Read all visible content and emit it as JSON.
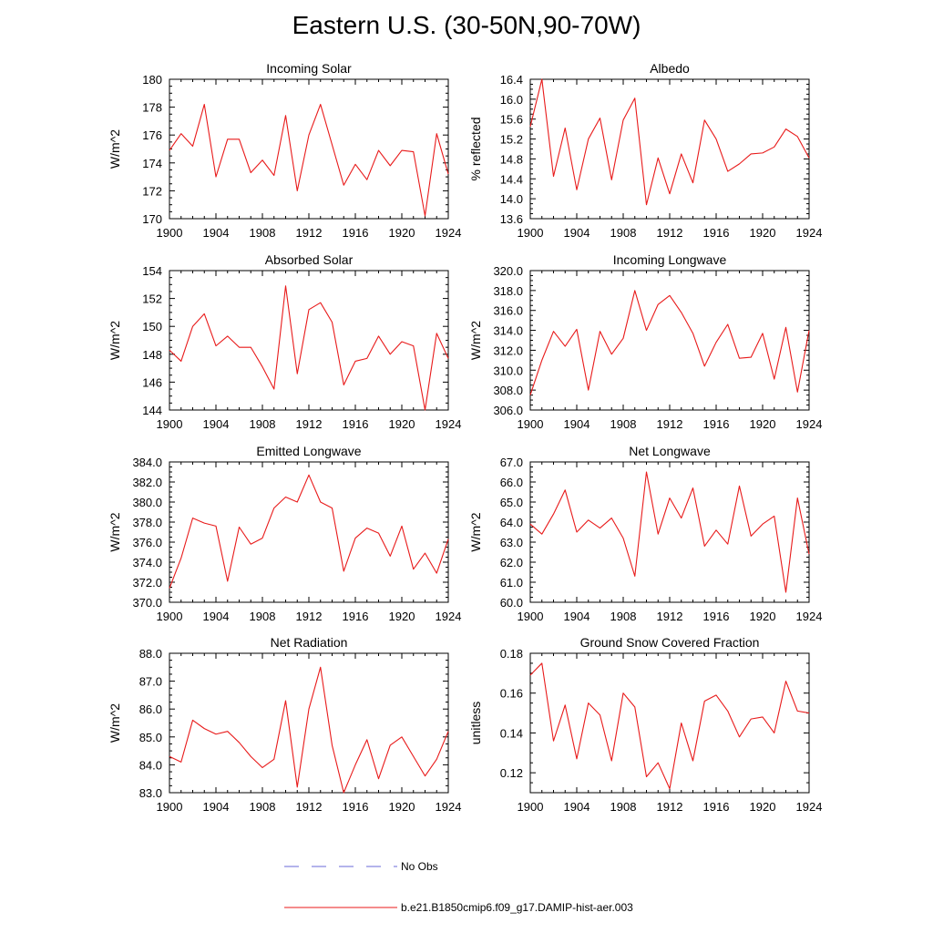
{
  "page": {
    "title": "Eastern U.S. (30-50N,90-70W)"
  },
  "legend": {
    "items": [
      {
        "label": "No Obs",
        "style": "dashed",
        "color": "#6a6ad8"
      },
      {
        "label": "b.e21.B1850cmip6.f09_g17.DAMIP-hist-aer.003",
        "style": "solid",
        "color": "#e81a1a"
      }
    ]
  },
  "colors": {
    "series": "#e81a1a",
    "axis": "#000000"
  },
  "chart_data": [
    {
      "type": "line",
      "title": "Incoming Solar",
      "ylabel": "W/m^2",
      "xlim": [
        1900,
        1924
      ],
      "ylim": [
        170,
        180
      ],
      "xticks": [
        1900,
        1904,
        1908,
        1912,
        1916,
        1920,
        1924
      ],
      "yticks": [
        170,
        172,
        174,
        176,
        178,
        180
      ],
      "ytick_labels": [
        "170",
        "172",
        "174",
        "176",
        "178",
        "180"
      ],
      "x": [
        1900,
        1901,
        1902,
        1903,
        1904,
        1905,
        1906,
        1907,
        1908,
        1909,
        1910,
        1911,
        1912,
        1913,
        1914,
        1915,
        1916,
        1917,
        1918,
        1919,
        1920,
        1921,
        1922,
        1923,
        1924
      ],
      "values": [
        174.9,
        176.1,
        175.2,
        178.2,
        173.0,
        175.7,
        175.7,
        173.3,
        174.2,
        173.1,
        177.4,
        172.0,
        176.0,
        178.2,
        175.3,
        172.4,
        173.9,
        172.8,
        174.9,
        173.8,
        174.9,
        174.8,
        170.2,
        176.1,
        173.2
      ]
    },
    {
      "type": "line",
      "title": "Albedo",
      "ylabel": "% reflected",
      "xlim": [
        1900,
        1924
      ],
      "ylim": [
        13.6,
        16.4
      ],
      "xticks": [
        1900,
        1904,
        1908,
        1912,
        1916,
        1920,
        1924
      ],
      "yticks": [
        13.6,
        14.0,
        14.4,
        14.8,
        15.2,
        15.6,
        16.0,
        16.4
      ],
      "ytick_labels": [
        "13.6",
        "14.0",
        "14.4",
        "14.8",
        "15.2",
        "15.6",
        "16.0",
        "16.4"
      ],
      "x": [
        1900,
        1901,
        1902,
        1903,
        1904,
        1905,
        1906,
        1907,
        1908,
        1909,
        1910,
        1911,
        1912,
        1913,
        1914,
        1915,
        1916,
        1917,
        1918,
        1919,
        1920,
        1921,
        1922,
        1923,
        1924
      ],
      "values": [
        15.45,
        16.4,
        14.45,
        15.42,
        14.18,
        15.2,
        15.62,
        14.38,
        15.58,
        16.02,
        13.88,
        14.82,
        14.1,
        14.9,
        14.32,
        15.58,
        15.2,
        14.55,
        14.7,
        14.9,
        14.92,
        15.04,
        15.4,
        15.25,
        14.82
      ]
    },
    {
      "type": "line",
      "title": "Absorbed Solar",
      "ylabel": "W/m^2",
      "xlim": [
        1900,
        1924
      ],
      "ylim": [
        144,
        154
      ],
      "xticks": [
        1900,
        1904,
        1908,
        1912,
        1916,
        1920,
        1924
      ],
      "yticks": [
        144,
        146,
        148,
        150,
        152,
        154
      ],
      "ytick_labels": [
        "144",
        "146",
        "148",
        "150",
        "152",
        "154"
      ],
      "x": [
        1900,
        1901,
        1902,
        1903,
        1904,
        1905,
        1906,
        1907,
        1908,
        1909,
        1910,
        1911,
        1912,
        1913,
        1914,
        1915,
        1916,
        1917,
        1918,
        1919,
        1920,
        1921,
        1922,
        1923,
        1924
      ],
      "values": [
        148.3,
        147.5,
        150.0,
        150.9,
        148.6,
        149.3,
        148.5,
        148.5,
        147.1,
        145.5,
        152.9,
        146.6,
        151.2,
        151.7,
        150.3,
        145.8,
        147.5,
        147.7,
        149.3,
        148.0,
        148.9,
        148.6,
        144.0,
        149.5,
        147.7
      ]
    },
    {
      "type": "line",
      "title": "Incoming Longwave",
      "ylabel": "W/m^2",
      "xlim": [
        1900,
        1924
      ],
      "ylim": [
        306,
        320
      ],
      "xticks": [
        1900,
        1904,
        1908,
        1912,
        1916,
        1920,
        1924
      ],
      "yticks": [
        306,
        308,
        310,
        312,
        314,
        316,
        318,
        320
      ],
      "ytick_labels": [
        "306.0",
        "308.0",
        "310.0",
        "312.0",
        "314.0",
        "316.0",
        "318.0",
        "320.0"
      ],
      "x": [
        1900,
        1901,
        1902,
        1903,
        1904,
        1905,
        1906,
        1907,
        1908,
        1909,
        1910,
        1911,
        1912,
        1913,
        1914,
        1915,
        1916,
        1917,
        1918,
        1919,
        1920,
        1921,
        1922,
        1923,
        1924
      ],
      "values": [
        307.5,
        311.0,
        313.9,
        312.4,
        314.1,
        308.0,
        313.9,
        311.6,
        313.2,
        318.0,
        314.0,
        316.6,
        317.5,
        315.8,
        313.7,
        310.4,
        312.8,
        314.6,
        311.2,
        311.3,
        313.7,
        309.1,
        314.3,
        307.8,
        314.0
      ]
    },
    {
      "type": "line",
      "title": "Emitted Longwave",
      "ylabel": "W/m^2",
      "xlim": [
        1900,
        1924
      ],
      "ylim": [
        370,
        384
      ],
      "xticks": [
        1900,
        1904,
        1908,
        1912,
        1916,
        1920,
        1924
      ],
      "yticks": [
        370,
        372,
        374,
        376,
        378,
        380,
        382,
        384
      ],
      "ytick_labels": [
        "370.0",
        "372.0",
        "374.0",
        "376.0",
        "378.0",
        "380.0",
        "382.0",
        "384.0"
      ],
      "x": [
        1900,
        1901,
        1902,
        1903,
        1904,
        1905,
        1906,
        1907,
        1908,
        1909,
        1910,
        1911,
        1912,
        1913,
        1914,
        1915,
        1916,
        1917,
        1918,
        1919,
        1920,
        1921,
        1922,
        1923,
        1924
      ],
      "values": [
        371.4,
        374.4,
        378.4,
        377.9,
        377.6,
        372.1,
        377.5,
        375.8,
        376.4,
        379.4,
        380.5,
        380.0,
        382.7,
        380.0,
        379.4,
        373.1,
        376.4,
        377.4,
        376.9,
        374.6,
        377.6,
        373.3,
        374.9,
        372.9,
        376.3
      ]
    },
    {
      "type": "line",
      "title": "Net Longwave",
      "ylabel": "W/m^2",
      "xlim": [
        1900,
        1924
      ],
      "ylim": [
        60,
        67
      ],
      "xticks": [
        1900,
        1904,
        1908,
        1912,
        1916,
        1920,
        1924
      ],
      "yticks": [
        60,
        61,
        62,
        63,
        64,
        65,
        66,
        67
      ],
      "ytick_labels": [
        "60.0",
        "61.0",
        "62.0",
        "63.0",
        "64.0",
        "65.0",
        "66.0",
        "67.0"
      ],
      "x": [
        1900,
        1901,
        1902,
        1903,
        1904,
        1905,
        1906,
        1907,
        1908,
        1909,
        1910,
        1911,
        1912,
        1913,
        1914,
        1915,
        1916,
        1917,
        1918,
        1919,
        1920,
        1921,
        1922,
        1923,
        1924
      ],
      "values": [
        63.9,
        63.4,
        64.4,
        65.6,
        63.5,
        64.1,
        63.7,
        64.2,
        63.2,
        61.3,
        66.5,
        63.4,
        65.2,
        64.2,
        65.7,
        62.8,
        63.6,
        62.9,
        65.8,
        63.3,
        63.9,
        64.3,
        60.5,
        65.2,
        62.4
      ]
    },
    {
      "type": "line",
      "title": "Net Radiation",
      "ylabel": "W/m^2",
      "xlim": [
        1900,
        1924
      ],
      "ylim": [
        83,
        88
      ],
      "xticks": [
        1900,
        1904,
        1908,
        1912,
        1916,
        1920,
        1924
      ],
      "yticks": [
        83,
        84,
        85,
        86,
        87,
        88
      ],
      "ytick_labels": [
        "83.0",
        "84.0",
        "85.0",
        "86.0",
        "87.0",
        "88.0"
      ],
      "x": [
        1900,
        1901,
        1902,
        1903,
        1904,
        1905,
        1906,
        1907,
        1908,
        1909,
        1910,
        1911,
        1912,
        1913,
        1914,
        1915,
        1916,
        1917,
        1918,
        1919,
        1920,
        1921,
        1922,
        1923,
        1924
      ],
      "values": [
        84.3,
        84.1,
        85.6,
        85.3,
        85.1,
        85.2,
        84.8,
        84.3,
        83.9,
        84.2,
        86.3,
        83.2,
        86.0,
        87.5,
        84.7,
        83.0,
        84.0,
        84.9,
        83.5,
        84.7,
        85.0,
        84.3,
        83.6,
        84.2,
        85.2
      ]
    },
    {
      "type": "line",
      "title": "Ground Snow Covered Fraction",
      "ylabel": "unitless",
      "xlim": [
        1900,
        1924
      ],
      "ylim": [
        0.11,
        0.18
      ],
      "xticks": [
        1900,
        1904,
        1908,
        1912,
        1916,
        1920,
        1924
      ],
      "yticks": [
        0.12,
        0.14,
        0.16,
        0.18
      ],
      "ytick_labels": [
        "0.12",
        "0.14",
        "0.16",
        "0.18"
      ],
      "x": [
        1900,
        1901,
        1902,
        1903,
        1904,
        1905,
        1906,
        1907,
        1908,
        1909,
        1910,
        1911,
        1912,
        1913,
        1914,
        1915,
        1916,
        1917,
        1918,
        1919,
        1920,
        1921,
        1922,
        1923,
        1924
      ],
      "values": [
        0.169,
        0.175,
        0.136,
        0.154,
        0.127,
        0.155,
        0.149,
        0.126,
        0.16,
        0.153,
        0.118,
        0.125,
        0.112,
        0.145,
        0.126,
        0.156,
        0.159,
        0.151,
        0.138,
        0.147,
        0.148,
        0.14,
        0.166,
        0.151,
        0.15
      ]
    }
  ]
}
